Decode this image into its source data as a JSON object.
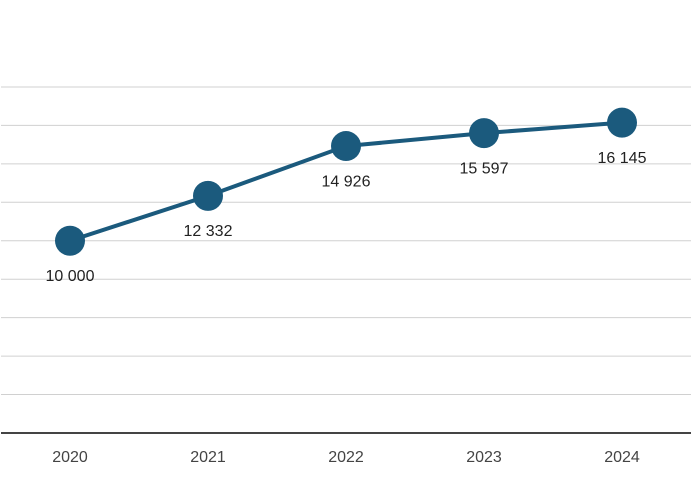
{
  "chart_data": {
    "type": "line",
    "categories": [
      "2020",
      "2021",
      "2022",
      "2023",
      "2024"
    ],
    "values": [
      10000,
      12332,
      14926,
      15597,
      16145
    ],
    "value_labels": [
      "10 000",
      "12 332",
      "14 926",
      "15 597",
      "16 145"
    ],
    "color": "#1b5a7d",
    "ylim": [
      0,
      20000
    ],
    "yticks": [
      2000,
      4000,
      6000,
      8000,
      10000,
      12000,
      14000,
      16000,
      18000
    ],
    "grid": true
  }
}
